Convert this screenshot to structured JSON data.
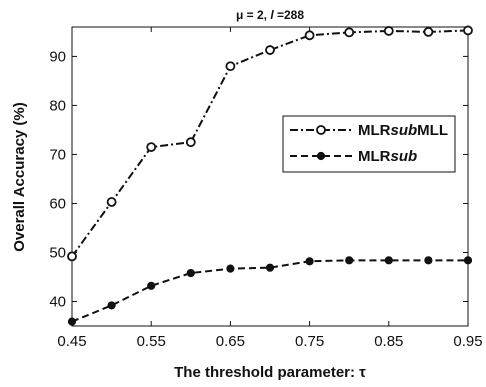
{
  "chart_data": {
    "type": "line",
    "title": "μ = 2, l =288",
    "title_parts": {
      "lead": "μ = 2, ",
      "var": "l",
      "tail": " =288"
    },
    "xlabel": "The threshold parameter: τ",
    "ylabel": "Overall Accuracy (%)",
    "xlim": [
      0.45,
      0.95
    ],
    "ylim": [
      35,
      96
    ],
    "x_ticks": [
      "0.45",
      "0.55",
      "0.65",
      "0.75",
      "0.85",
      "0.95"
    ],
    "y_ticks": [
      "40",
      "50",
      "60",
      "70",
      "80",
      "90"
    ],
    "x_tick_values": [
      0.45,
      0.55,
      0.65,
      0.75,
      0.85,
      0.95
    ],
    "y_tick_values": [
      40,
      50,
      60,
      70,
      80,
      90
    ],
    "grid": false,
    "legend_position": "right",
    "x": [
      0.45,
      0.5,
      0.55,
      0.6,
      0.65,
      0.7,
      0.75,
      0.8,
      0.85,
      0.9,
      0.95
    ],
    "series": [
      {
        "name": "MLRsubMLL",
        "name_parts": {
          "a": "MLR",
          "b": "sub",
          "c": "MLL"
        },
        "style": "dash-dot",
        "marker": "open-circle",
        "values": [
          49.2,
          60.3,
          71.5,
          72.5,
          88.0,
          91.3,
          94.3,
          94.9,
          95.2,
          95.0,
          95.3
        ]
      },
      {
        "name": "MLRsub",
        "name_parts": {
          "a": "MLR",
          "b": "sub",
          "c": ""
        },
        "style": "dashed",
        "marker": "filled-circle",
        "values": [
          35.9,
          39.2,
          43.2,
          45.8,
          46.7,
          46.9,
          48.2,
          48.4,
          48.4,
          48.4,
          48.4
        ]
      }
    ]
  }
}
